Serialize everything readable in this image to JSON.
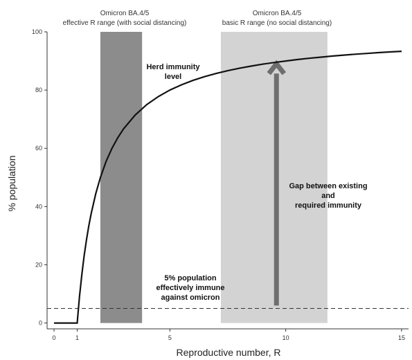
{
  "chart_data": {
    "type": "line",
    "xlabel": "Reproductive number, R",
    "ylabel": "% population",
    "xlim": [
      -0.3,
      15.3
    ],
    "ylim": [
      -2,
      100
    ],
    "x_ticks": [
      0,
      1,
      5,
      10,
      15
    ],
    "y_ticks": [
      0,
      20,
      40,
      60,
      80,
      100
    ],
    "grid": false,
    "series": [
      {
        "x": [
          0,
          1,
          1.05,
          1.1,
          1.2,
          1.3,
          1.4,
          1.5,
          1.6,
          1.8,
          2,
          2.25,
          2.5,
          2.75,
          3,
          3.5,
          4,
          4.5,
          5,
          5.5,
          6,
          6.5,
          7,
          7.5,
          8,
          8.5,
          9,
          9.5,
          10,
          10.5,
          11,
          11.5,
          12,
          12.5,
          13,
          13.5,
          14,
          14.5,
          15
        ],
        "y": [
          0,
          0,
          4.76,
          9.09,
          16.67,
          23.08,
          28.57,
          33.33,
          37.5,
          44.44,
          50,
          55.56,
          60,
          63.64,
          66.67,
          71.43,
          75,
          77.78,
          80,
          81.82,
          83.33,
          84.62,
          85.71,
          86.67,
          87.5,
          88.24,
          88.89,
          89.47,
          90,
          90.48,
          90.91,
          91.3,
          91.67,
          92,
          92.31,
          92.59,
          92.86,
          93.1,
          93.33
        ]
      }
    ],
    "bands": [
      {
        "x_range": [
          2,
          3.8
        ],
        "color": "#8c8c8c",
        "label_line1": "Omicron BA.4/5",
        "label_line2": "effective R range (with social distancing)"
      },
      {
        "x_range": [
          7.2,
          11.8
        ],
        "color": "#d3d3d3",
        "label_line1": "Omicron BA.4/5",
        "label_line2": "basic R range (no social distancing)"
      }
    ],
    "reference_line": {
      "y": 5,
      "style": "dashed"
    },
    "arrow": {
      "x": 9.6,
      "y_from": 6,
      "y_to": 89
    },
    "annotations": {
      "herd": [
        "Herd immunity",
        "level"
      ],
      "gap": [
        "Gap between existing",
        "and",
        "required immunity"
      ],
      "immune": [
        "5% population",
        "effectively immune",
        "against omicron"
      ]
    }
  }
}
